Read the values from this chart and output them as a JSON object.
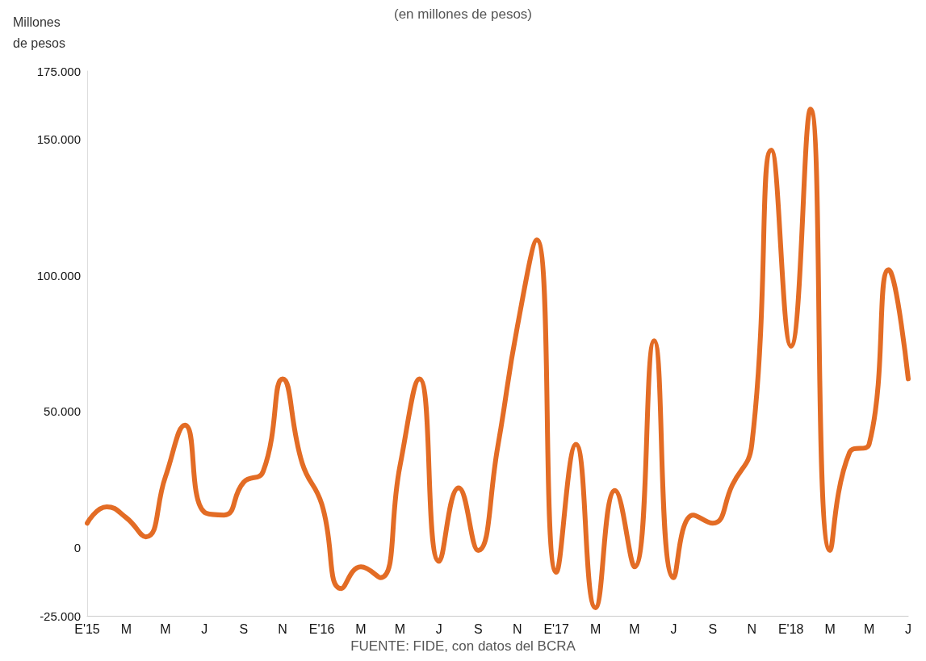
{
  "chart_data": {
    "type": "line",
    "subtitle": "(en millones de pesos)",
    "ylabel": "Millones\nde pesos",
    "annotations": [
      "FUENTE: FIDE, con datos del BCRA"
    ],
    "categories": [
      "E'15",
      null,
      "M",
      null,
      "M",
      null,
      "J",
      null,
      "S",
      null,
      "N",
      null,
      "E'16",
      null,
      "M",
      null,
      "M",
      null,
      "J",
      null,
      "S",
      null,
      "N",
      null,
      "E'17",
      null,
      "M",
      null,
      "M",
      null,
      "J",
      null,
      "S",
      null,
      "N",
      null,
      "E'18",
      null,
      "M",
      null,
      "M",
      null,
      "J"
    ],
    "series": [
      {
        "color": "#e36c25",
        "values": [
          9000,
          15000,
          11000,
          4000,
          26000,
          45000,
          13000,
          12000,
          24000,
          28000,
          62000,
          31000,
          16000,
          -15000,
          -7000,
          -11000,
          30000,
          62000,
          -5000,
          22000,
          -1000,
          37000,
          81000,
          113000,
          -9000,
          38000,
          -22000,
          21000,
          -7000,
          76000,
          -11000,
          12000,
          9000,
          23000,
          38000,
          146000,
          74000,
          161000,
          -1000,
          35000,
          38000,
          102000,
          62000
        ]
      }
    ],
    "ylim": [
      -25000,
      175000
    ],
    "yticks": [
      {
        "value": -25000,
        "label": "-25.000"
      },
      0,
      {
        "value": 50000,
        "label": "50.000"
      },
      {
        "value": 100000,
        "label": "100.000"
      },
      {
        "value": 150000,
        "label": "150.000"
      },
      {
        "value": 175000,
        "label": "175.000"
      }
    ],
    "grid": false,
    "marker": "none",
    "line_style": "solid"
  }
}
